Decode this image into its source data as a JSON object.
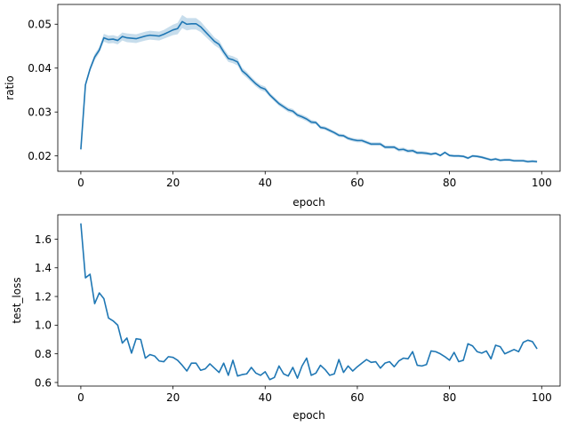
{
  "chart_data": [
    {
      "type": "line",
      "title": "",
      "xlabel": "epoch",
      "ylabel": "ratio",
      "xlim": [
        -5,
        104
      ],
      "ylim": [
        0.0165,
        0.0545
      ],
      "xticks": [
        0,
        20,
        40,
        60,
        80,
        100
      ],
      "yticks": [
        0.02,
        0.03,
        0.04,
        0.05
      ],
      "ytick_labels": [
        "0.02",
        "0.03",
        "0.04",
        "0.05"
      ],
      "grid": false,
      "legend": "none",
      "color": "#1f77b4",
      "band_color": "#1f77b4",
      "series": [
        {
          "x": [
            0,
            1,
            2,
            3,
            4,
            5,
            6,
            7,
            8,
            9,
            10,
            11,
            12,
            13,
            14,
            15,
            16,
            17,
            18,
            19,
            20,
            21,
            22,
            23,
            24,
            25,
            26,
            27,
            28,
            29,
            30,
            31,
            32,
            33,
            34,
            35,
            36,
            37,
            38,
            39,
            40,
            41,
            42,
            43,
            44,
            45,
            46,
            47,
            48,
            49,
            50,
            51,
            52,
            53,
            54,
            55,
            56,
            57,
            58,
            59,
            60,
            61,
            62,
            63,
            64,
            65,
            66,
            67,
            68,
            69,
            70,
            71,
            72,
            73,
            74,
            75,
            76,
            77,
            78,
            79,
            80,
            81,
            82,
            83,
            84,
            85,
            86,
            87,
            88,
            89,
            90,
            91,
            92,
            93,
            94,
            95,
            96,
            97,
            98,
            99
          ],
          "values": [
            0.0215,
            0.0362,
            0.0398,
            0.0425,
            0.0441,
            0.0469,
            0.0465,
            0.0466,
            0.0463,
            0.0472,
            0.0469,
            0.0468,
            0.0467,
            0.047,
            0.0473,
            0.0475,
            0.0474,
            0.0473,
            0.0477,
            0.0482,
            0.0487,
            0.049,
            0.0506,
            0.05,
            0.0501,
            0.0501,
            0.0494,
            0.0483,
            0.0472,
            0.0461,
            0.0454,
            0.0437,
            0.0422,
            0.0419,
            0.0414,
            0.0394,
            0.0385,
            0.0374,
            0.0364,
            0.0356,
            0.0352,
            0.0339,
            0.0329,
            0.0319,
            0.0312,
            0.0305,
            0.0302,
            0.0293,
            0.0289,
            0.0284,
            0.0277,
            0.0276,
            0.0265,
            0.0263,
            0.0258,
            0.0253,
            0.0247,
            0.0246,
            0.024,
            0.0237,
            0.0235,
            0.0235,
            0.0231,
            0.0227,
            0.0227,
            0.0227,
            0.022,
            0.022,
            0.022,
            0.0214,
            0.0215,
            0.0211,
            0.0212,
            0.0207,
            0.0207,
            0.0206,
            0.0204,
            0.0206,
            0.0201,
            0.0208,
            0.0201,
            0.02,
            0.02,
            0.0199,
            0.0195,
            0.02,
            0.0199,
            0.0197,
            0.0194,
            0.0191,
            0.0193,
            0.019,
            0.0191,
            0.0191,
            0.0189,
            0.0189,
            0.0189,
            0.0187,
            0.0188,
            0.0187
          ],
          "band_halfwidth": [
            0.0006,
            0.0006,
            0.0006,
            0.0007,
            0.0007,
            0.0009,
            0.0009,
            0.0009,
            0.0009,
            0.0009,
            0.001,
            0.001,
            0.001,
            0.001,
            0.001,
            0.001,
            0.001,
            0.001,
            0.001,
            0.0011,
            0.0012,
            0.0013,
            0.0015,
            0.0014,
            0.0013,
            0.0013,
            0.0012,
            0.0011,
            0.001,
            0.0009,
            0.0009,
            0.0008,
            0.0008,
            0.0008,
            0.0008,
            0.0007,
            0.0007,
            0.0006,
            0.0006,
            0.0006,
            0.0006,
            0.0005,
            0.0005,
            0.0005,
            0.0005,
            0.0005,
            0.0005,
            0.0005,
            0.0005,
            0.0005,
            0.0005,
            0.0004,
            0.0004,
            0.0004,
            0.0004,
            0.0004,
            0.0004,
            0.0004,
            0.0004,
            0.0004,
            0.0004,
            0.0004,
            0.0004,
            0.0004,
            0.0004,
            0.0004,
            0.0004,
            0.0004,
            0.0004,
            0.0004,
            0.0004,
            0.0004,
            0.0004,
            0.0004,
            0.0004,
            0.0004,
            0.0003,
            0.0003,
            0.0003,
            0.0003,
            0.0003,
            0.0003,
            0.0003,
            0.0003,
            0.0003,
            0.0003,
            0.0003,
            0.0003,
            0.0003,
            0.0003,
            0.0003,
            0.0003,
            0.0003,
            0.0003,
            0.0003,
            0.0003,
            0.0003,
            0.0003,
            0.0003,
            0.0003
          ]
        }
      ]
    },
    {
      "type": "line",
      "title": "",
      "xlabel": "epoch",
      "ylabel": "test_loss",
      "xlim": [
        -5,
        104
      ],
      "ylim": [
        0.575,
        1.77
      ],
      "xticks": [
        0,
        20,
        40,
        60,
        80,
        100
      ],
      "yticks": [
        0.6,
        0.8,
        1.0,
        1.2,
        1.4,
        1.6
      ],
      "ytick_labels": [
        "0.6",
        "0.8",
        "1.0",
        "1.2",
        "1.4",
        "1.6"
      ],
      "grid": false,
      "legend": "none",
      "color": "#1f77b4",
      "series": [
        {
          "x": [
            0,
            1,
            2,
            3,
            4,
            5,
            6,
            7,
            8,
            9,
            10,
            11,
            12,
            13,
            14,
            15,
            16,
            17,
            18,
            19,
            20,
            21,
            22,
            23,
            24,
            25,
            26,
            27,
            28,
            29,
            30,
            31,
            32,
            33,
            34,
            35,
            36,
            37,
            38,
            39,
            40,
            41,
            42,
            43,
            44,
            45,
            46,
            47,
            48,
            49,
            50,
            51,
            52,
            53,
            54,
            55,
            56,
            57,
            58,
            59,
            60,
            61,
            62,
            63,
            64,
            65,
            66,
            67,
            68,
            69,
            70,
            71,
            72,
            73,
            74,
            75,
            76,
            77,
            78,
            79,
            80,
            81,
            82,
            83,
            84,
            85,
            86,
            87,
            88,
            89,
            90,
            91,
            92,
            93,
            94,
            95,
            96,
            97,
            98,
            99
          ],
          "values": [
            1.71,
            1.33,
            1.355,
            1.15,
            1.225,
            1.185,
            1.05,
            1.03,
            1.0,
            0.875,
            0.91,
            0.805,
            0.905,
            0.9,
            0.77,
            0.795,
            0.785,
            0.75,
            0.745,
            0.78,
            0.775,
            0.755,
            0.72,
            0.68,
            0.735,
            0.735,
            0.685,
            0.695,
            0.73,
            0.7,
            0.67,
            0.735,
            0.65,
            0.755,
            0.645,
            0.655,
            0.66,
            0.705,
            0.665,
            0.65,
            0.675,
            0.62,
            0.635,
            0.715,
            0.66,
            0.645,
            0.705,
            0.63,
            0.715,
            0.77,
            0.65,
            0.665,
            0.72,
            0.69,
            0.65,
            0.66,
            0.76,
            0.67,
            0.715,
            0.68,
            0.71,
            0.735,
            0.76,
            0.74,
            0.745,
            0.7,
            0.735,
            0.745,
            0.71,
            0.75,
            0.77,
            0.765,
            0.815,
            0.72,
            0.715,
            0.725,
            0.82,
            0.815,
            0.8,
            0.78,
            0.755,
            0.81,
            0.745,
            0.755,
            0.87,
            0.855,
            0.815,
            0.805,
            0.82,
            0.765,
            0.86,
            0.85,
            0.8,
            0.815,
            0.83,
            0.815,
            0.88,
            0.895,
            0.885,
            0.835
          ]
        }
      ]
    }
  ]
}
